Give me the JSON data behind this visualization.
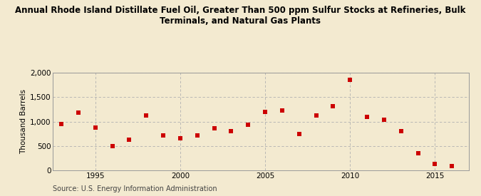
{
  "title_line1": "Annual Rhode Island Distillate Fuel Oil, Greater Than 500 ppm Sulfur Stocks at Refineries, Bulk",
  "title_line2": "Terminals, and Natural Gas Plants",
  "ylabel": "Thousand Barrels",
  "source": "Source: U.S. Energy Information Administration",
  "background_color": "#f3ead0",
  "marker_color": "#cc0000",
  "years": [
    1993,
    1994,
    1995,
    1996,
    1997,
    1998,
    1999,
    2000,
    2001,
    2002,
    2003,
    2004,
    2005,
    2006,
    2007,
    2008,
    2009,
    2010,
    2011,
    2012,
    2013,
    2014,
    2015,
    2016
  ],
  "values": [
    950,
    1180,
    880,
    500,
    635,
    1130,
    720,
    660,
    720,
    860,
    800,
    930,
    1190,
    1230,
    750,
    1120,
    1310,
    1850,
    1100,
    1030,
    800,
    350,
    140,
    90
  ],
  "ylim": [
    0,
    2000
  ],
  "yticks": [
    0,
    500,
    1000,
    1500,
    2000
  ],
  "ytick_labels": [
    "0",
    "500",
    "1,000",
    "1,500",
    "2,000"
  ],
  "xlim": [
    1992.5,
    2017
  ],
  "xticks": [
    1995,
    2000,
    2005,
    2010,
    2015
  ],
  "grid_color": "#b0b0b0",
  "title_fontsize": 8.5,
  "axis_label_fontsize": 7.5,
  "tick_fontsize": 7.5,
  "source_fontsize": 7.0,
  "marker_size": 16
}
